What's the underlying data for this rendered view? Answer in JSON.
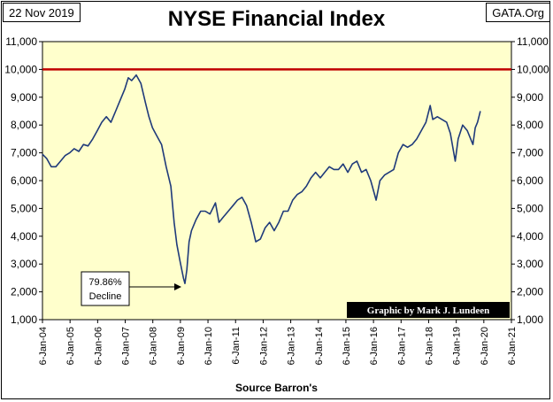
{
  "header": {
    "date": "22 Nov 2019",
    "source_site": "GATA.Org",
    "title": "NYSE Financial Index",
    "footer": "Source Barron's"
  },
  "annotations": {
    "decline_line1": "79.86%",
    "decline_line2": "Decline",
    "credit": "Graphic by Mark J. Lundeen"
  },
  "colors": {
    "plot_background": "#ffffcc",
    "series_line": "#1f3a7a",
    "reference_line": "#c00000",
    "credit_background": "#000000",
    "credit_text": "#ffffff"
  },
  "chart_data": {
    "type": "line",
    "title": "NYSE Financial Index",
    "xlabel": "",
    "ylabel": "",
    "ylim": [
      1000,
      11000
    ],
    "xlim": [
      "2004-01-06",
      "2021-01-06"
    ],
    "grid": false,
    "y_ticks": [
      "1,000",
      "2,000",
      "3,000",
      "4,000",
      "5,000",
      "6,000",
      "7,000",
      "8,000",
      "9,000",
      "10,000",
      "11,000"
    ],
    "x_ticks": [
      "6-Jan-04",
      "6-Jan-05",
      "6-Jan-06",
      "6-Jan-07",
      "6-Jan-08",
      "6-Jan-09",
      "6-Jan-10",
      "6-Jan-11",
      "6-Jan-12",
      "6-Jan-13",
      "6-Jan-14",
      "6-Jan-15",
      "6-Jan-16",
      "6-Jan-17",
      "6-Jan-18",
      "6-Jan-19",
      "6-Jan-20",
      "6-Jan-21"
    ],
    "reference_line": {
      "y": 10000
    },
    "series": [
      {
        "x": [
          "2004-01-06",
          "2004-03-01",
          "2004-05-01",
          "2004-07-01",
          "2004-09-01",
          "2004-11-01",
          "2005-01-01",
          "2005-03-01",
          "2005-05-01",
          "2005-07-01",
          "2005-09-01",
          "2005-11-01",
          "2006-01-01",
          "2006-03-01",
          "2006-05-01",
          "2006-07-01",
          "2006-09-01",
          "2006-11-01",
          "2007-01-01",
          "2007-02-15",
          "2007-04-01",
          "2007-06-01",
          "2007-08-01",
          "2007-10-01",
          "2007-11-15",
          "2008-01-01",
          "2008-03-01",
          "2008-05-01",
          "2008-07-01",
          "2008-09-01",
          "2008-10-15",
          "2008-11-20",
          "2009-01-01",
          "2009-02-15",
          "2009-03-06",
          "2009-04-01",
          "2009-05-01",
          "2009-06-01",
          "2009-08-01",
          "2009-10-01",
          "2009-12-01",
          "2010-02-01",
          "2010-04-15",
          "2010-06-01",
          "2010-08-01",
          "2010-10-01",
          "2010-12-01",
          "2011-02-01",
          "2011-04-01",
          "2011-06-01",
          "2011-08-01",
          "2011-10-01",
          "2011-12-01",
          "2012-02-01",
          "2012-04-01",
          "2012-06-01",
          "2012-08-01",
          "2012-10-01",
          "2012-12-01",
          "2013-02-01",
          "2013-04-01",
          "2013-06-01",
          "2013-08-01",
          "2013-10-01",
          "2013-12-01",
          "2014-02-01",
          "2014-04-01",
          "2014-06-01",
          "2014-08-01",
          "2014-10-01",
          "2014-12-01",
          "2015-02-01",
          "2015-04-01",
          "2015-06-01",
          "2015-08-01",
          "2015-10-01",
          "2015-12-01",
          "2016-02-11",
          "2016-04-01",
          "2016-06-01",
          "2016-08-01",
          "2016-10-01",
          "2016-12-01",
          "2017-02-01",
          "2017-04-01",
          "2017-06-01",
          "2017-08-01",
          "2017-10-01",
          "2017-12-01",
          "2018-01-26",
          "2018-03-01",
          "2018-05-01",
          "2018-07-01",
          "2018-09-01",
          "2018-10-20",
          "2018-12-24",
          "2019-02-01",
          "2019-04-01",
          "2019-06-01",
          "2019-08-15",
          "2019-09-15",
          "2019-10-15",
          "2019-11-22"
        ],
        "y": [
          6950,
          6800,
          6500,
          6500,
          6700,
          6900,
          7000,
          7150,
          7050,
          7300,
          7250,
          7500,
          7800,
          8100,
          8300,
          8100,
          8500,
          8900,
          9300,
          9700,
          9600,
          9800,
          9500,
          8800,
          8300,
          7900,
          7600,
          7300,
          6500,
          5800,
          4500,
          3700,
          3100,
          2500,
          2300,
          2800,
          3800,
          4200,
          4600,
          4900,
          4900,
          4800,
          5200,
          4500,
          4700,
          4900,
          5100,
          5300,
          5400,
          5100,
          4500,
          3800,
          3900,
          4300,
          4500,
          4200,
          4500,
          4900,
          4900,
          5300,
          5500,
          5600,
          5800,
          6100,
          6300,
          6100,
          6300,
          6500,
          6400,
          6400,
          6600,
          6300,
          6600,
          6700,
          6300,
          6400,
          6000,
          5300,
          6000,
          6200,
          6300,
          6400,
          7000,
          7300,
          7200,
          7300,
          7500,
          7800,
          8100,
          8700,
          8200,
          8300,
          8200,
          8100,
          7700,
          6700,
          7500,
          8000,
          7800,
          7300,
          7900,
          8100,
          8500
        ]
      }
    ]
  }
}
